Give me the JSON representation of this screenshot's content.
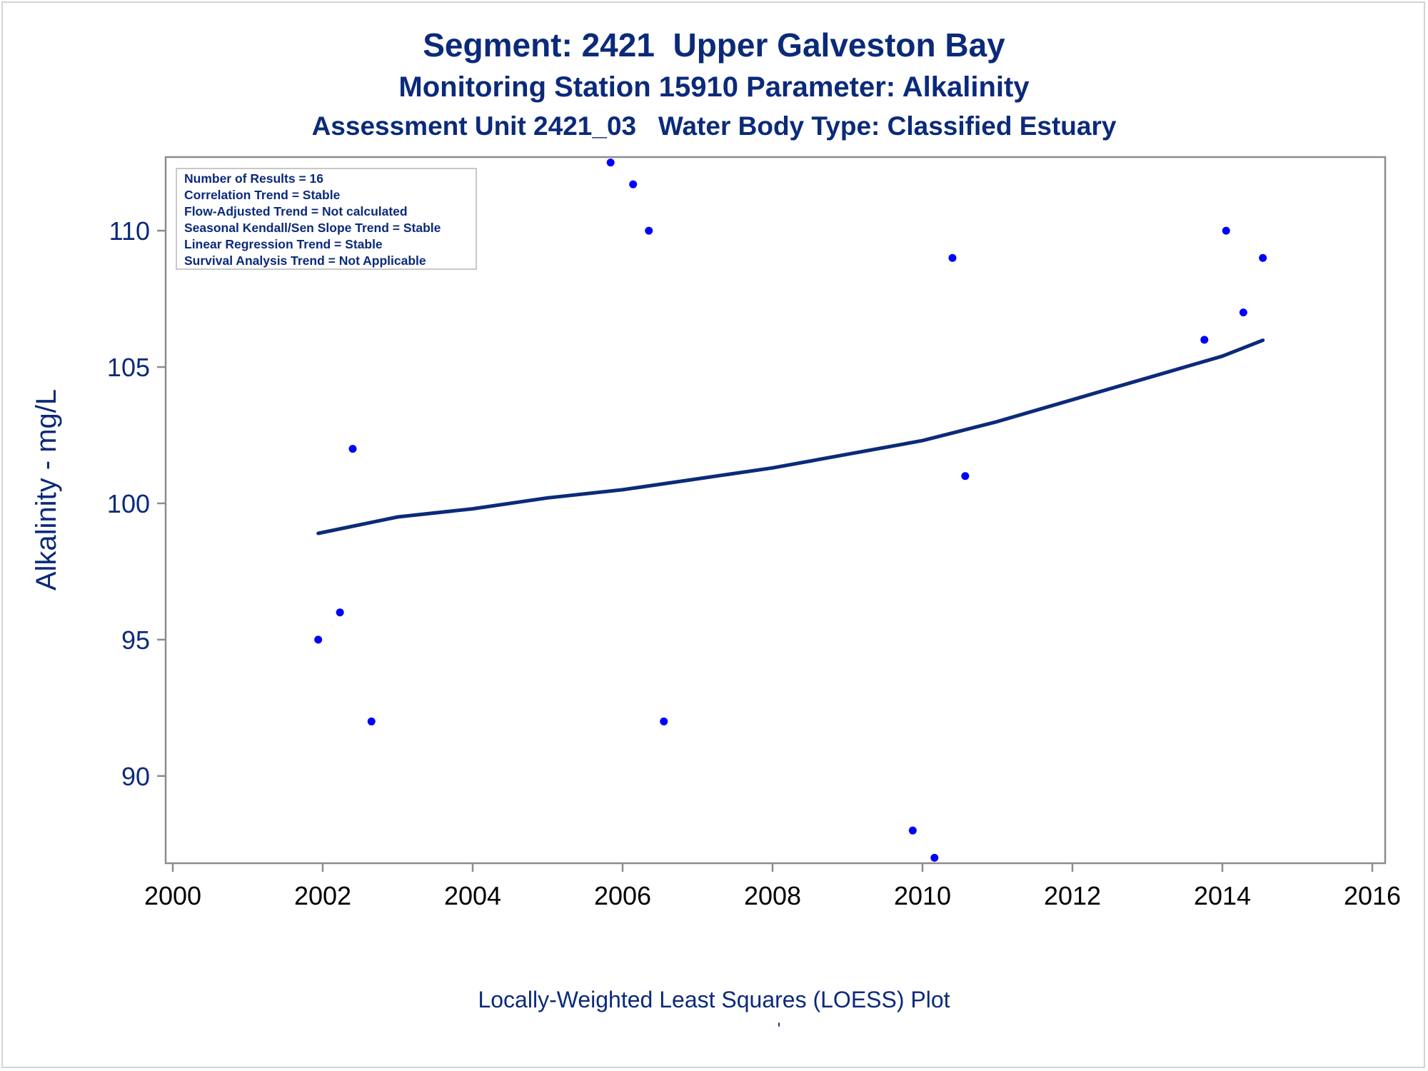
{
  "titles": {
    "line1": "Segment: 2421  Upper Galveston Bay",
    "line2": "Monitoring Station 15910 Parameter: Alkalinity",
    "line3": "Assessment Unit 2421_03   Water Body Type: Classified Estuary"
  },
  "stats_box": {
    "lines": [
      "Number of Results = 16",
      "Correlation Trend = Stable",
      "Flow-Adjusted Trend = Not calculated",
      "Seasonal Kendall/Sen Slope Trend = Stable",
      "Linear Regression Trend = Stable",
      "Survival Analysis Trend = Not Applicable"
    ]
  },
  "footnote": "Locally-Weighted Least Squares (LOESS) Plot",
  "footnote_mark": "'",
  "colors": {
    "text": "#0b2a7a",
    "points": "#0000ff",
    "line": "#0b2a7a",
    "frame": "#8c8c8c"
  },
  "chart_data": {
    "type": "scatter",
    "ylabel": "Alkalinity - mg/L",
    "xlabel": "",
    "xlim": [
      2000,
      2016
    ],
    "ylim": [
      86.8,
      112.7
    ],
    "xticks": [
      2000,
      2002,
      2004,
      2006,
      2008,
      2010,
      2012,
      2014,
      2016
    ],
    "yticks": [
      90,
      95,
      100,
      105,
      110
    ],
    "grid": false,
    "points": [
      {
        "x": 2001.94,
        "y": 95
      },
      {
        "x": 2002.23,
        "y": 96
      },
      {
        "x": 2002.4,
        "y": 102
      },
      {
        "x": 2002.65,
        "y": 92
      },
      {
        "x": 2005.84,
        "y": 112.5
      },
      {
        "x": 2006.14,
        "y": 111.7
      },
      {
        "x": 2006.35,
        "y": 110
      },
      {
        "x": 2006.55,
        "y": 92
      },
      {
        "x": 2009.87,
        "y": 88
      },
      {
        "x": 2010.16,
        "y": 87
      },
      {
        "x": 2010.4,
        "y": 109
      },
      {
        "x": 2010.57,
        "y": 101
      },
      {
        "x": 2013.76,
        "y": 106
      },
      {
        "x": 2014.05,
        "y": 110
      },
      {
        "x": 2014.28,
        "y": 107
      },
      {
        "x": 2014.54,
        "y": 109
      }
    ],
    "loess": {
      "x": [
        2001.94,
        2003,
        2004,
        2005,
        2006,
        2007,
        2008,
        2009,
        2010,
        2011,
        2012,
        2013,
        2014,
        2014.54
      ],
      "y": [
        98.9,
        99.5,
        99.8,
        100.2,
        100.5,
        100.9,
        101.3,
        101.8,
        102.3,
        103.0,
        103.8,
        104.6,
        105.4,
        105.98
      ]
    }
  }
}
